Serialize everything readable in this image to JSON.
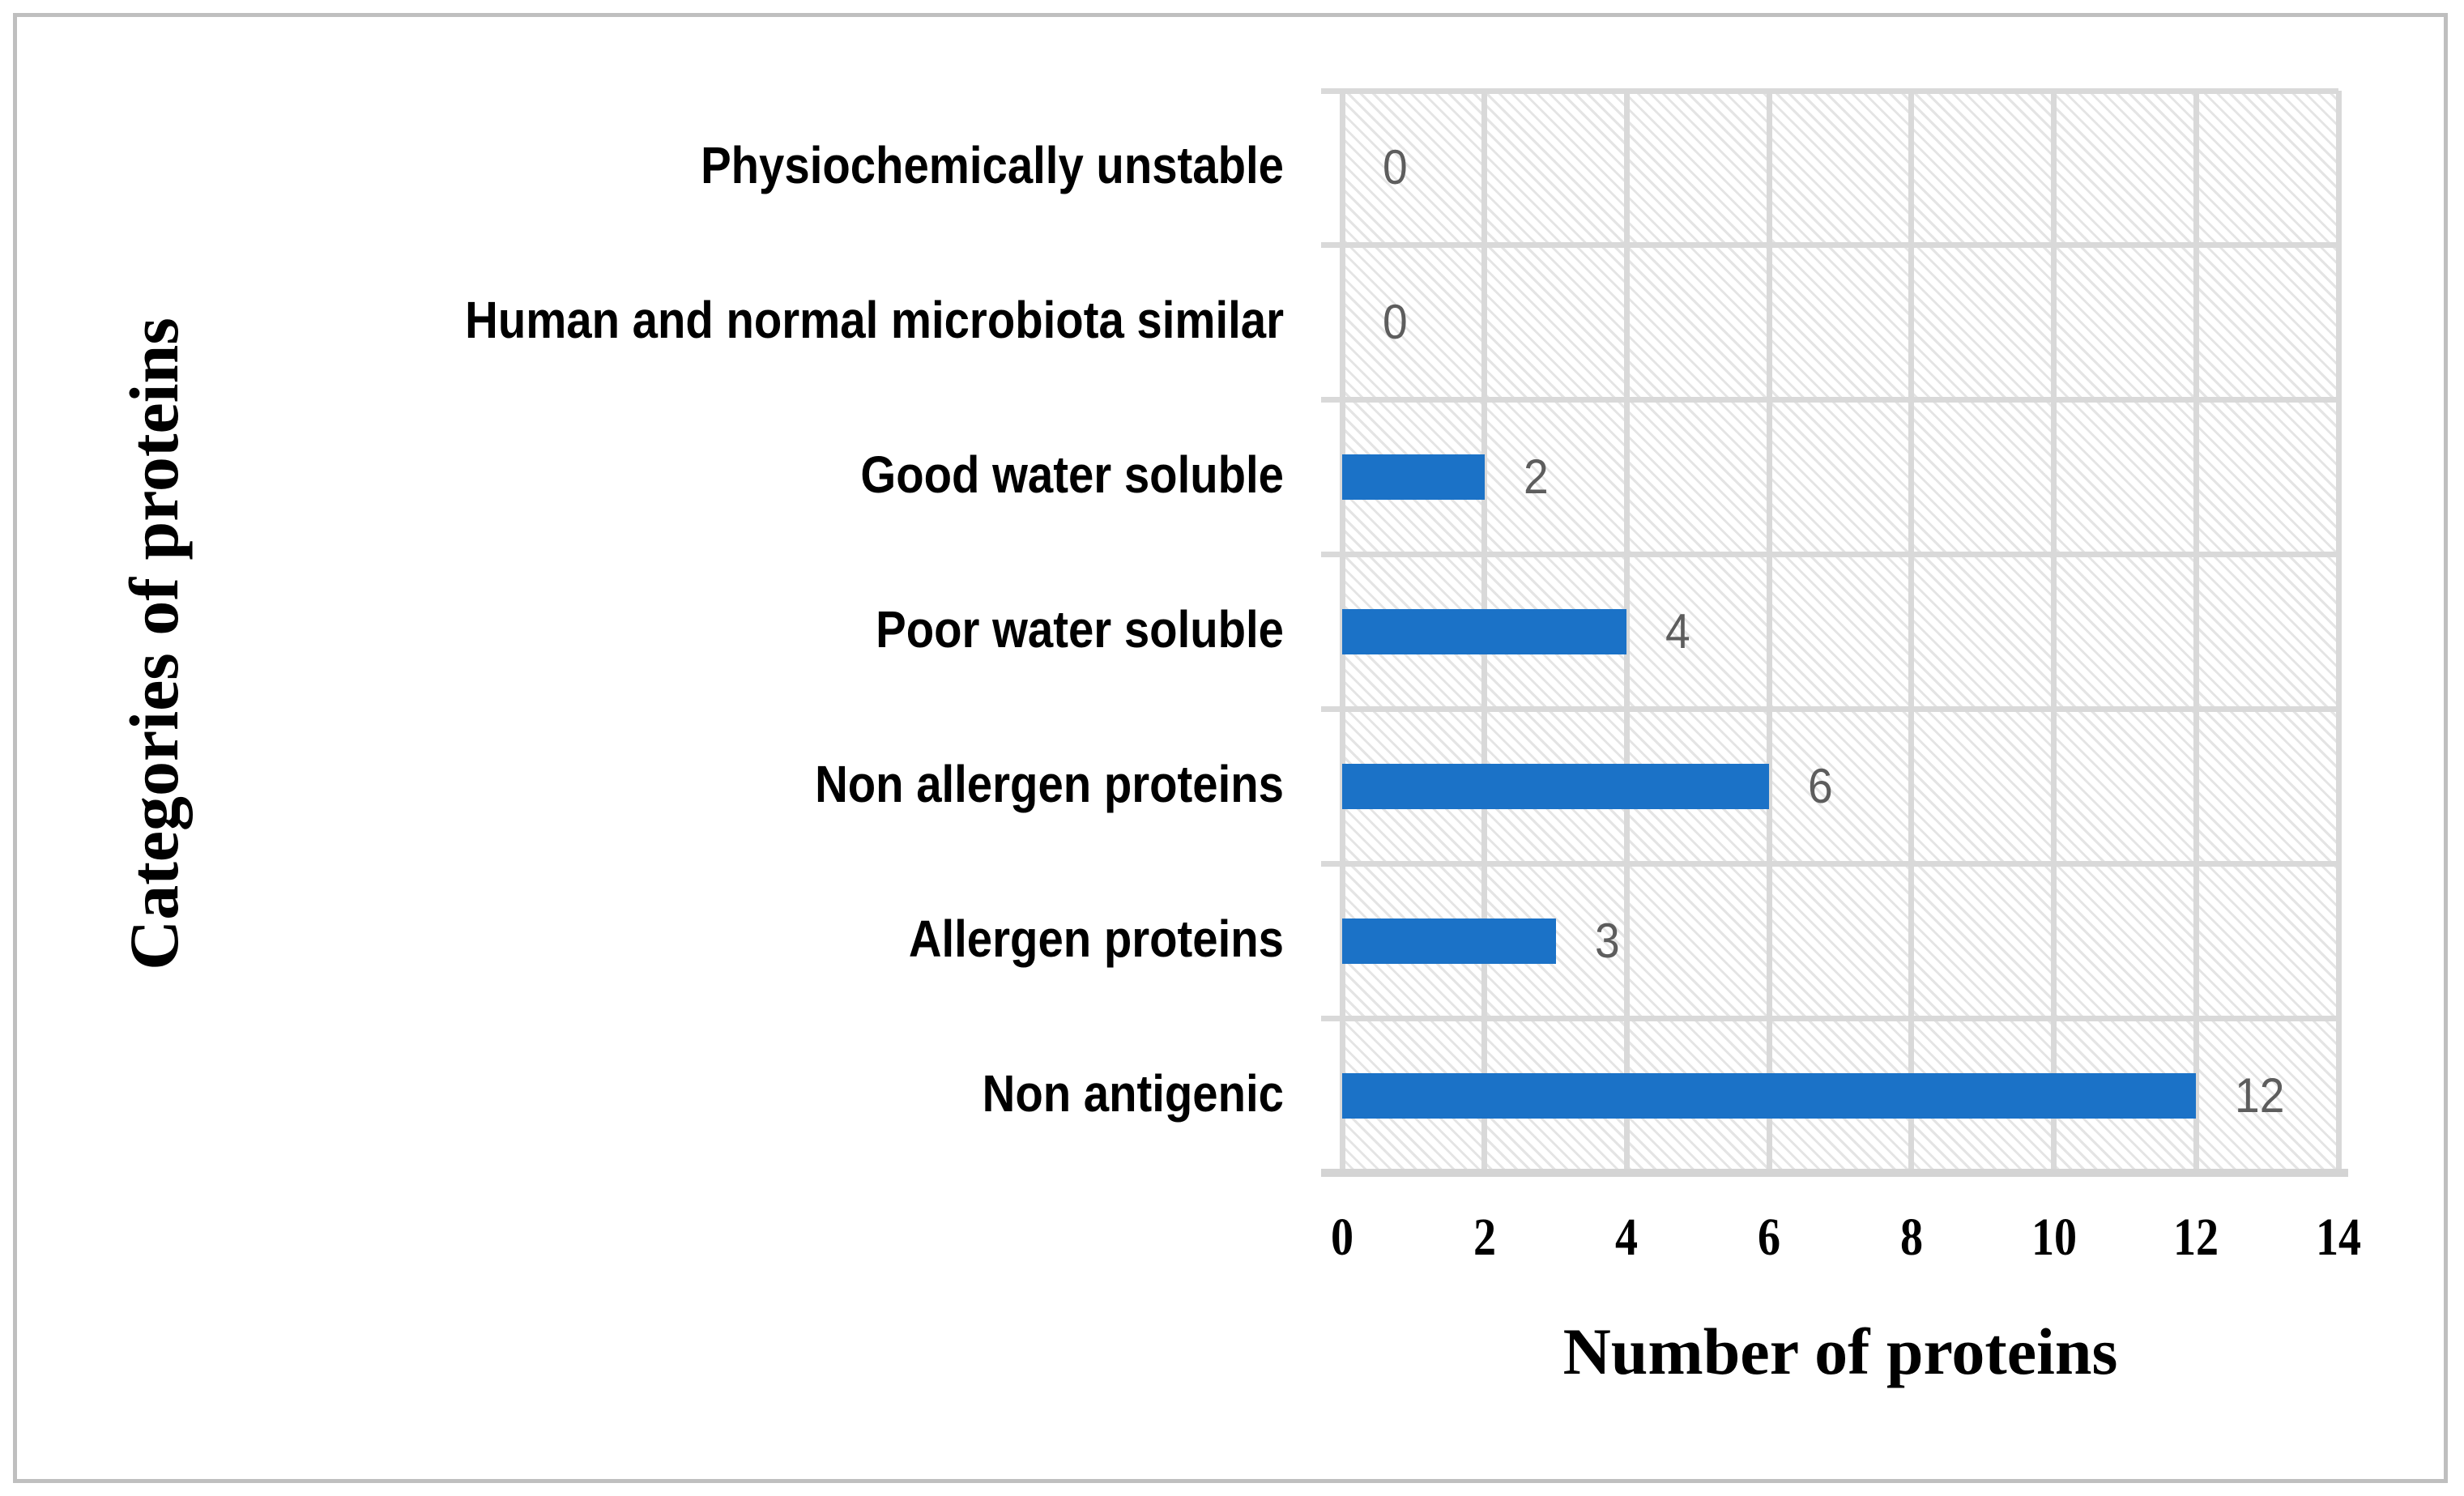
{
  "chart_data": {
    "type": "bar",
    "orientation": "horizontal",
    "title": "",
    "categories": [
      "Physiochemically unstable",
      "Human and normal microbiota similar",
      "Good water soluble",
      "Poor water soluble",
      "Non allergen proteins",
      "Allergen proteins",
      "Non antigenic"
    ],
    "values": [
      0,
      0,
      2,
      4,
      6,
      3,
      12
    ],
    "data_labels": [
      "0",
      "0",
      "2",
      "4",
      "6",
      "3",
      "12"
    ],
    "xlabel": "Number of proteins",
    "ylabel": "Categories of proteins",
    "xlim": [
      0,
      14
    ],
    "xticks": [
      0,
      2,
      4,
      6,
      8,
      10,
      12,
      14
    ],
    "xtick_labels": [
      "0",
      "2",
      "4",
      "6",
      "8",
      "10",
      "12",
      "14"
    ],
    "grid": true,
    "legend": false,
    "plot_background": "hatched-diagonal",
    "colors": {
      "bar": "#1b72c7",
      "data_label": "#5d5d5d",
      "gridline": "#d9d9d9",
      "axis_line": "#d4d4d4",
      "hatch": "#e4e4e4",
      "text": "#000000",
      "frame_border": "#bfbfbf",
      "background": "#ffffff"
    }
  }
}
